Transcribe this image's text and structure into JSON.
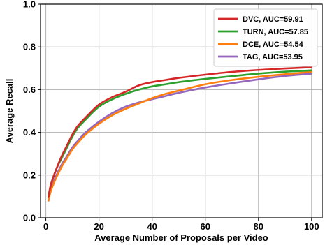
{
  "chart_data": {
    "type": "line",
    "title": "",
    "xlabel": "Average Number of Proposals per Video",
    "ylabel": "Average Recall",
    "xlim": [
      -2,
      104
    ],
    "ylim": [
      0.0,
      1.0
    ],
    "xticks": [
      0,
      20,
      40,
      60,
      80,
      100
    ],
    "yticks": [
      0.0,
      0.2,
      0.4,
      0.6,
      0.8,
      1.0
    ],
    "xtick_labels": [
      "0",
      "20",
      "40",
      "60",
      "80",
      "100"
    ],
    "ytick_labels": [
      "0.0",
      "0.2",
      "0.4",
      "0.6",
      "0.8",
      "1.0"
    ],
    "grid": true,
    "legend_position": "top-right",
    "x": [
      1,
      2,
      4,
      6,
      8,
      10,
      12,
      15,
      20,
      25,
      30,
      35,
      40,
      45,
      50,
      60,
      70,
      80,
      90,
      100
    ],
    "series": [
      {
        "name": "DVC, AUC=59.91",
        "color": "#d62728",
        "values": [
          0.1,
          0.16,
          0.23,
          0.29,
          0.34,
          0.39,
          0.43,
          0.47,
          0.53,
          0.565,
          0.59,
          0.62,
          0.635,
          0.645,
          0.655,
          0.67,
          0.683,
          0.692,
          0.699,
          0.705
        ]
      },
      {
        "name": "TURN, AUC=57.85",
        "color": "#2ca02c",
        "values": [
          0.1,
          0.16,
          0.23,
          0.28,
          0.33,
          0.38,
          0.42,
          0.46,
          0.52,
          0.555,
          0.58,
          0.6,
          0.615,
          0.625,
          0.635,
          0.65,
          0.663,
          0.675,
          0.684,
          0.69
        ]
      },
      {
        "name": "DCE, AUC=54.54",
        "color": "#ff7f0e",
        "values": [
          0.08,
          0.13,
          0.19,
          0.24,
          0.28,
          0.32,
          0.35,
          0.39,
          0.44,
          0.48,
          0.51,
          0.535,
          0.56,
          0.58,
          0.595,
          0.625,
          0.645,
          0.66,
          0.672,
          0.683
        ]
      },
      {
        "name": "TAG, AUC=53.95",
        "color": "#9467bd",
        "values": [
          0.09,
          0.14,
          0.2,
          0.25,
          0.29,
          0.33,
          0.36,
          0.4,
          0.45,
          0.49,
          0.52,
          0.54,
          0.555,
          0.57,
          0.585,
          0.61,
          0.63,
          0.648,
          0.664,
          0.675
        ]
      }
    ]
  }
}
